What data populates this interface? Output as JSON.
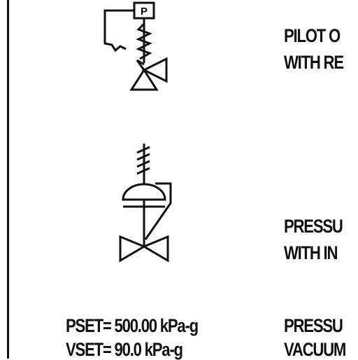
{
  "symbols": [
    {
      "pilot_box_letter": "P",
      "desc_line1": "PILOT O",
      "desc_line2": "WITH RE"
    },
    {
      "desc_line1": "PRESSU",
      "desc_line2": "WITH IN"
    },
    {
      "set_line1": "PSET= 500.00 kPa-g",
      "set_line2": "VSET= 90.0 kPa-g",
      "desc_line1": "PRESSU",
      "desc_line2": "VACUUM"
    }
  ]
}
